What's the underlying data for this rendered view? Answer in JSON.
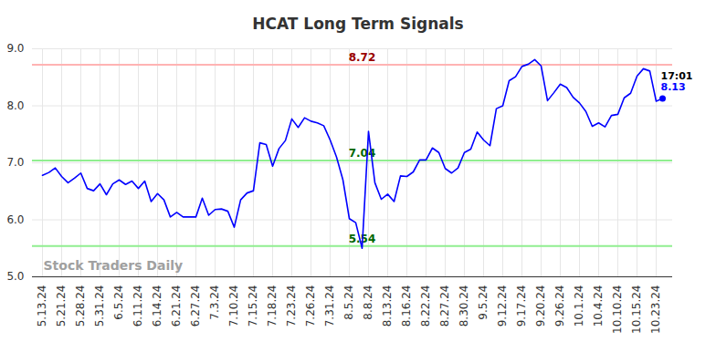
{
  "chart_data": {
    "type": "line",
    "title": "HCAT Long Term Signals",
    "color": "#0000ff",
    "grid": true,
    "ylim": [
      5,
      9
    ],
    "yticks": [
      5,
      6,
      7,
      8,
      9
    ],
    "categories": [
      "5.13.24",
      null,
      null,
      "5.21.24",
      null,
      null,
      "5.28.24",
      null,
      null,
      "5.31.24",
      null,
      null,
      "6.5.24",
      null,
      null,
      "6.11.24",
      null,
      null,
      "6.14.24",
      null,
      null,
      "6.21.24",
      null,
      null,
      "6.27.24",
      null,
      null,
      "7.3.24",
      null,
      null,
      "7.10.24",
      null,
      null,
      "7.15.24",
      null,
      null,
      "7.18.24",
      null,
      null,
      "7.23.24",
      null,
      null,
      "7.26.24",
      null,
      null,
      "7.31.24",
      null,
      null,
      "8.5.24",
      null,
      null,
      "8.8.24",
      null,
      null,
      "8.13.24",
      null,
      null,
      "8.16.24",
      null,
      null,
      "8.22.24",
      null,
      null,
      "8.27.24",
      null,
      null,
      "8.30.24",
      null,
      null,
      "9.5.24",
      null,
      null,
      "9.12.24",
      null,
      null,
      "9.17.24",
      null,
      null,
      "9.20.24",
      null,
      null,
      "9.26.24",
      null,
      null,
      "10.1.24",
      null,
      null,
      "10.4.24",
      null,
      null,
      "10.10.24",
      null,
      null,
      "10.15.24",
      null,
      null,
      "10.23.24",
      null
    ],
    "values": [
      6.78,
      6.83,
      6.91,
      6.76,
      6.65,
      6.73,
      6.82,
      6.55,
      6.51,
      6.63,
      6.44,
      6.63,
      6.7,
      6.62,
      6.68,
      6.55,
      6.68,
      6.32,
      6.46,
      6.35,
      6.05,
      6.13,
      6.05,
      6.05,
      6.05,
      6.38,
      6.08,
      6.18,
      6.19,
      6.15,
      5.87,
      6.35,
      6.47,
      6.51,
      7.35,
      7.32,
      6.94,
      7.25,
      7.39,
      7.77,
      7.62,
      7.79,
      7.73,
      7.7,
      7.65,
      7.4,
      7.1,
      6.7,
      6.02,
      5.95,
      5.5,
      7.55,
      6.65,
      6.36,
      6.45,
      6.32,
      6.77,
      6.76,
      6.84,
      7.05,
      7.05,
      7.26,
      7.18,
      6.9,
      6.82,
      6.91,
      7.18,
      7.24,
      7.54,
      7.4,
      7.3,
      7.95,
      8.0,
      8.44,
      8.51,
      8.69,
      8.73,
      8.81,
      8.7,
      8.09,
      8.23,
      8.38,
      8.32,
      8.15,
      8.05,
      7.9,
      7.64,
      7.7,
      7.63,
      7.83,
      7.85,
      8.14,
      8.22,
      8.52,
      8.65,
      8.61,
      8.08,
      8.13
    ],
    "reference_lines": [
      {
        "value": 8.72,
        "label": "8.72",
        "color": "#ffb3b3"
      },
      {
        "value": 7.04,
        "label": "7.04",
        "color": "#90ee90"
      },
      {
        "value": 5.54,
        "label": "5.54",
        "color": "#90ee90"
      }
    ],
    "last_point": {
      "time": "17:01",
      "value": 8.13,
      "label": "8.13"
    },
    "watermark": "Stock Traders Daily"
  }
}
